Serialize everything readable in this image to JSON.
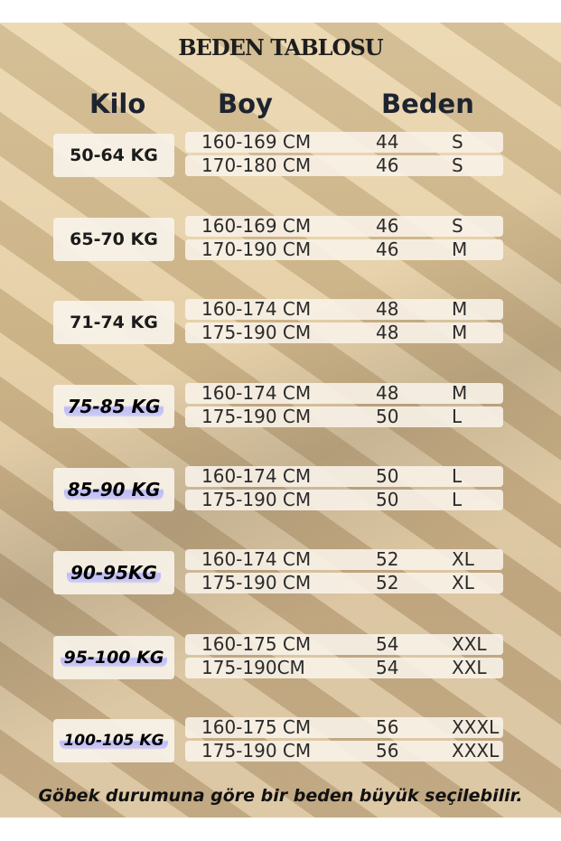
{
  "title": "BEDEN TABLOSU",
  "headers": {
    "kilo": "Kilo",
    "boy": "Boy",
    "beden": "Beden"
  },
  "groups": [
    {
      "kilo": "50-64 KG",
      "rows": [
        {
          "boy": "160-169 CM",
          "num": "44",
          "size": "S"
        },
        {
          "boy": "170-180 CM",
          "num": "46",
          "size": "S"
        }
      ]
    },
    {
      "kilo": "65-70 KG",
      "rows": [
        {
          "boy": "160-169 CM",
          "num": "46",
          "size": "S"
        },
        {
          "boy": "170-190 CM",
          "num": "46",
          "size": "M"
        }
      ]
    },
    {
      "kilo": "71-74 KG",
      "rows": [
        {
          "boy": "160-174 CM",
          "num": "48",
          "size": "M"
        },
        {
          "boy": "175-190 CM",
          "num": "48",
          "size": "M"
        }
      ]
    },
    {
      "kilo": "75-85 KG",
      "rows": [
        {
          "boy": "160-174 CM",
          "num": "48",
          "size": "M"
        },
        {
          "boy": "175-190 CM",
          "num": "50",
          "size": "L"
        }
      ]
    },
    {
      "kilo": "85-90 KG",
      "rows": [
        {
          "boy": "160-174 CM",
          "num": "50",
          "size": "L"
        },
        {
          "boy": "175-190 CM",
          "num": "50",
          "size": "L"
        }
      ]
    },
    {
      "kilo": "90-95KG",
      "rows": [
        {
          "boy": "160-174 CM",
          "num": "52",
          "size": "XL"
        },
        {
          "boy": "175-190 CM",
          "num": "52",
          "size": "XL"
        }
      ]
    },
    {
      "kilo": "95-100 KG",
      "rows": [
        {
          "boy": "160-175 CM",
          "num": "54",
          "size": "XXL"
        },
        {
          "boy": "175-190CM",
          "num": "54",
          "size": "XXL"
        }
      ]
    },
    {
      "kilo": "100-105 KG",
      "rows": [
        {
          "boy": "160-175 CM",
          "num": "56",
          "size": "XXXL"
        },
        {
          "boy": "175-190 CM",
          "num": "56",
          "size": "XXXL"
        }
      ]
    }
  ],
  "footer": "Göbek durumuna göre bir beden büyük seçilebilir."
}
